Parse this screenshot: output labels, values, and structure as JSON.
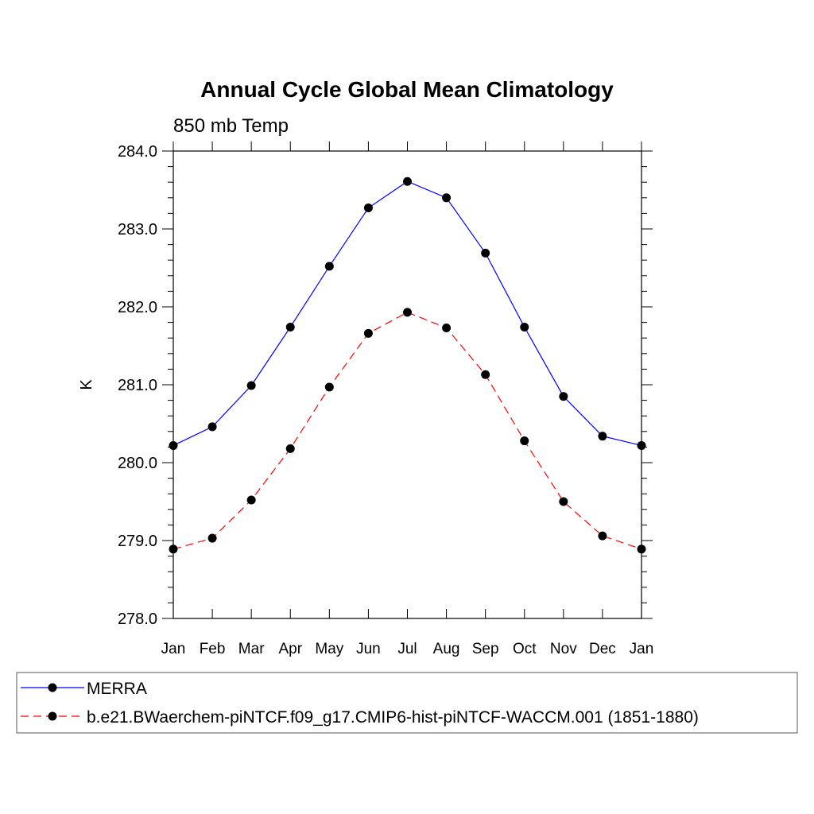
{
  "chart_data": {
    "type": "line",
    "title": "Annual Cycle Global Mean Climatology",
    "subtitle": "850 mb Temp",
    "ylabel": "K",
    "xlabel": "",
    "categories": [
      "Jan",
      "Feb",
      "Mar",
      "Apr",
      "May",
      "Jun",
      "Jul",
      "Aug",
      "Sep",
      "Oct",
      "Nov",
      "Dec",
      "Jan"
    ],
    "ylim": [
      278.0,
      284.0
    ],
    "yticks": [
      "278.0",
      "279.0",
      "280.0",
      "281.0",
      "282.0",
      "283.0",
      "284.0"
    ],
    "grid": false,
    "legend_placement": "bottom",
    "series": [
      {
        "name": "MERRA",
        "color": "#0000ff",
        "dashed": false,
        "values": [
          280.22,
          280.46,
          280.99,
          281.74,
          282.52,
          283.27,
          283.61,
          283.4,
          282.69,
          281.74,
          280.85,
          280.34,
          280.22
        ]
      },
      {
        "name": "b.e21.BWaerchem-piNTCF.f09_g17.CMIP6-hist-piNTCF-WACCM.001 (1851-1880)",
        "color": "#ff0000",
        "dashed": true,
        "values": [
          278.89,
          279.03,
          279.52,
          280.18,
          280.97,
          281.66,
          281.93,
          281.73,
          281.13,
          280.28,
          279.5,
          279.06,
          278.89
        ]
      }
    ]
  }
}
